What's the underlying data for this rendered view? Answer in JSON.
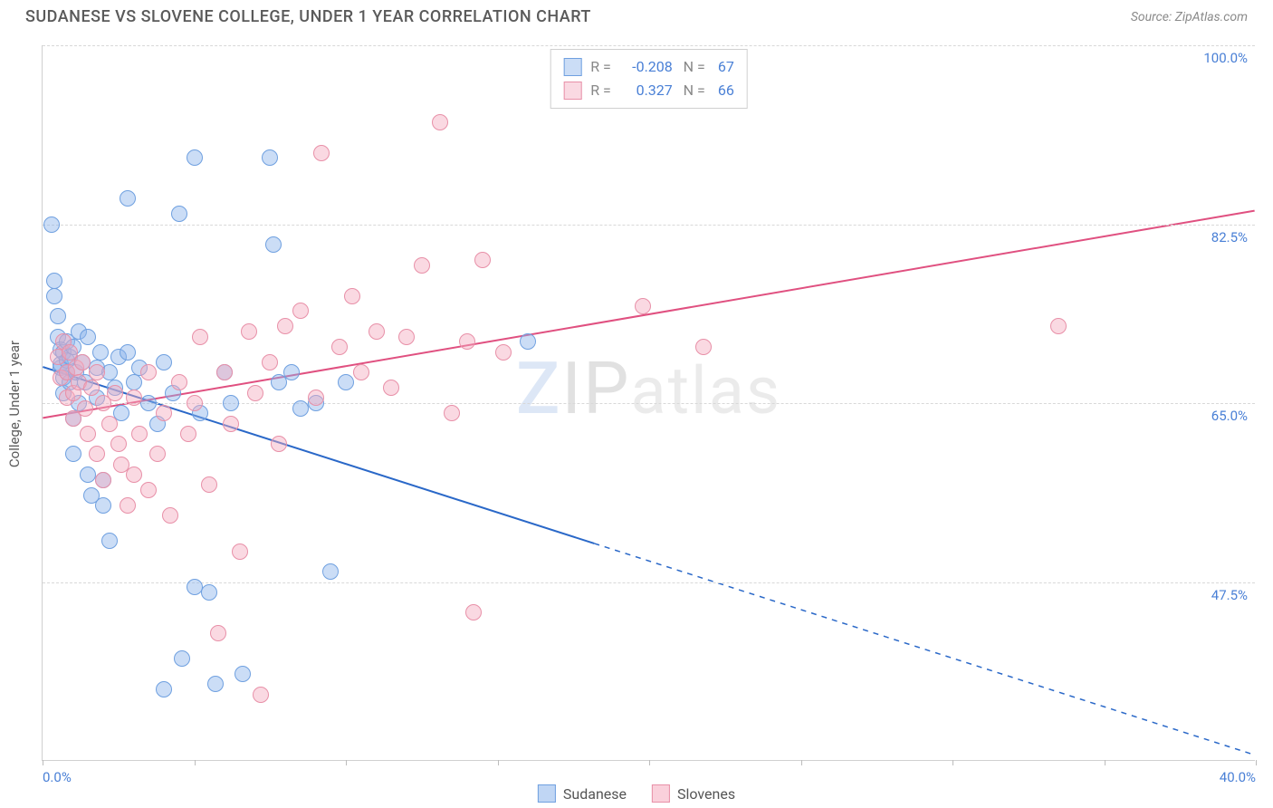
{
  "header": {
    "title": "SUDANESE VS SLOVENE COLLEGE, UNDER 1 YEAR CORRELATION CHART",
    "source": "Source: ZipAtlas.com"
  },
  "ylabel": "College, Under 1 year",
  "watermark": {
    "z": "Z",
    "ip": "IP",
    "rest": "atlas"
  },
  "chart": {
    "type": "scatter",
    "xlim": [
      0,
      40
    ],
    "ylim": [
      30,
      100
    ],
    "x_ticks": [
      0,
      5,
      10,
      15,
      20,
      25,
      30,
      35,
      40
    ],
    "x_tick_labels": {
      "0": "0.0%",
      "40": "40.0%"
    },
    "y_gridlines": [
      47.5,
      65.0,
      82.5,
      100.0
    ],
    "y_tick_labels": [
      "47.5%",
      "65.0%",
      "82.5%",
      "100.0%"
    ],
    "background_color": "#ffffff",
    "grid_color": "#d8d8d8",
    "axis_color": "#d0d0d0",
    "tick_label_color": "#4a80d6",
    "point_radius": 9,
    "series": [
      {
        "name": "Sudanese",
        "fill": "rgba(140,180,235,0.45)",
        "stroke": "#6fa0e0",
        "line_color": "#2a68c8",
        "line_width": 2,
        "r": "-0.208",
        "n": "67",
        "regression": {
          "x1": 0,
          "y1": 68.5,
          "x2": 40,
          "y2": 30.5,
          "solid_until_x": 18.2
        },
        "points": [
          [
            0.3,
            82.5
          ],
          [
            0.4,
            77.0
          ],
          [
            0.4,
            75.5
          ],
          [
            0.5,
            73.5
          ],
          [
            0.5,
            71.5
          ],
          [
            0.6,
            70.2
          ],
          [
            0.6,
            68.5
          ],
          [
            0.6,
            68.8
          ],
          [
            0.7,
            70.0
          ],
          [
            0.7,
            67.5
          ],
          [
            0.7,
            66.0
          ],
          [
            0.8,
            69.2
          ],
          [
            0.8,
            68.0
          ],
          [
            0.8,
            71.0
          ],
          [
            0.9,
            69.5
          ],
          [
            0.9,
            67.0
          ],
          [
            1.0,
            70.5
          ],
          [
            1.0,
            63.5
          ],
          [
            1.0,
            60.0
          ],
          [
            1.1,
            68.0
          ],
          [
            1.2,
            72.0
          ],
          [
            1.2,
            65.0
          ],
          [
            1.3,
            69.0
          ],
          [
            1.4,
            67.0
          ],
          [
            1.5,
            71.5
          ],
          [
            1.5,
            58.0
          ],
          [
            1.6,
            56.0
          ],
          [
            1.8,
            68.5
          ],
          [
            1.8,
            65.5
          ],
          [
            1.9,
            70.0
          ],
          [
            2.0,
            57.5
          ],
          [
            2.0,
            55.0
          ],
          [
            2.2,
            68.0
          ],
          [
            2.2,
            51.5
          ],
          [
            2.4,
            66.5
          ],
          [
            2.5,
            69.5
          ],
          [
            2.6,
            64.0
          ],
          [
            2.8,
            85.0
          ],
          [
            2.8,
            70.0
          ],
          [
            3.0,
            67.0
          ],
          [
            3.2,
            68.5
          ],
          [
            3.5,
            65.0
          ],
          [
            3.8,
            63.0
          ],
          [
            4.0,
            69.0
          ],
          [
            4.0,
            37.0
          ],
          [
            4.3,
            66.0
          ],
          [
            4.5,
            83.5
          ],
          [
            4.6,
            40.0
          ],
          [
            5.0,
            89.0
          ],
          [
            5.0,
            47.0
          ],
          [
            5.2,
            64.0
          ],
          [
            5.5,
            46.5
          ],
          [
            5.7,
            37.5
          ],
          [
            6.0,
            68.0
          ],
          [
            6.2,
            65.0
          ],
          [
            6.6,
            38.5
          ],
          [
            7.5,
            89.0
          ],
          [
            7.6,
            80.5
          ],
          [
            7.8,
            67.0
          ],
          [
            8.2,
            68.0
          ],
          [
            8.5,
            64.5
          ],
          [
            9.0,
            65.0
          ],
          [
            9.5,
            48.5
          ],
          [
            10.0,
            67.0
          ],
          [
            16.0,
            71.0
          ]
        ]
      },
      {
        "name": "Slovenes",
        "fill": "rgba(245,170,190,0.45)",
        "stroke": "#e890a8",
        "line_color": "#e05080",
        "line_width": 2,
        "r": "0.327",
        "n": "66",
        "regression": {
          "x1": 0,
          "y1": 63.5,
          "x2": 40,
          "y2": 83.8,
          "solid_until_x": 40
        },
        "points": [
          [
            0.5,
            69.5
          ],
          [
            0.6,
            67.5
          ],
          [
            0.7,
            71.0
          ],
          [
            0.8,
            68.0
          ],
          [
            0.8,
            65.5
          ],
          [
            0.9,
            70.0
          ],
          [
            1.0,
            66.0
          ],
          [
            1.0,
            63.5
          ],
          [
            1.1,
            68.5
          ],
          [
            1.2,
            67.0
          ],
          [
            1.3,
            69.0
          ],
          [
            1.4,
            64.5
          ],
          [
            1.5,
            62.0
          ],
          [
            1.6,
            66.5
          ],
          [
            1.8,
            60.0
          ],
          [
            1.8,
            68.0
          ],
          [
            2.0,
            65.0
          ],
          [
            2.0,
            57.5
          ],
          [
            2.2,
            63.0
          ],
          [
            2.4,
            66.0
          ],
          [
            2.5,
            61.0
          ],
          [
            2.6,
            59.0
          ],
          [
            2.8,
            55.0
          ],
          [
            3.0,
            65.5
          ],
          [
            3.0,
            58.0
          ],
          [
            3.2,
            62.0
          ],
          [
            3.5,
            68.0
          ],
          [
            3.5,
            56.5
          ],
          [
            3.8,
            60.0
          ],
          [
            4.0,
            64.0
          ],
          [
            4.2,
            54.0
          ],
          [
            4.5,
            67.0
          ],
          [
            4.8,
            62.0
          ],
          [
            5.0,
            65.0
          ],
          [
            5.2,
            71.5
          ],
          [
            5.5,
            57.0
          ],
          [
            5.8,
            42.5
          ],
          [
            6.0,
            68.0
          ],
          [
            6.2,
            63.0
          ],
          [
            6.5,
            50.5
          ],
          [
            6.8,
            72.0
          ],
          [
            7.0,
            66.0
          ],
          [
            7.2,
            36.5
          ],
          [
            7.5,
            69.0
          ],
          [
            7.8,
            61.0
          ],
          [
            8.0,
            72.5
          ],
          [
            8.5,
            74.0
          ],
          [
            9.0,
            65.5
          ],
          [
            9.2,
            89.5
          ],
          [
            9.8,
            70.5
          ],
          [
            10.2,
            75.5
          ],
          [
            10.5,
            68.0
          ],
          [
            11.0,
            72.0
          ],
          [
            11.5,
            66.5
          ],
          [
            12.0,
            71.5
          ],
          [
            12.5,
            78.5
          ],
          [
            13.1,
            92.5
          ],
          [
            13.5,
            64.0
          ],
          [
            14.0,
            71.0
          ],
          [
            14.2,
            44.5
          ],
          [
            14.5,
            79.0
          ],
          [
            15.2,
            70.0
          ],
          [
            19.8,
            74.5
          ],
          [
            21.8,
            70.5
          ],
          [
            33.5,
            72.5
          ]
        ]
      }
    ]
  },
  "legend_bottom": [
    {
      "label": "Sudanese",
      "fill": "rgba(140,180,235,0.55)",
      "stroke": "#6fa0e0"
    },
    {
      "label": "Slovenes",
      "fill": "rgba(245,170,190,0.55)",
      "stroke": "#e890a8"
    }
  ]
}
